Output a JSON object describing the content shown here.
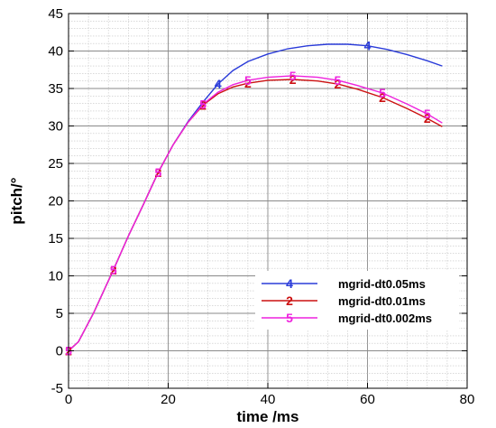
{
  "chart_data": {
    "type": "line",
    "xlabel": "time /ms",
    "ylabel": "pitch/°",
    "xlim": [
      0,
      80
    ],
    "ylim": [
      -5,
      45
    ],
    "xticks": [
      0,
      20,
      40,
      60,
      80
    ],
    "yticks": [
      -5,
      0,
      5,
      10,
      15,
      20,
      25,
      30,
      35,
      40,
      45
    ],
    "grid": true,
    "legend_position": "bottom-right",
    "series": [
      {
        "name": "mgrid-dt0.05ms",
        "marker": "4",
        "color": "#2a3bd9",
        "x": [
          0,
          2,
          5,
          9,
          12,
          15,
          18,
          21,
          24,
          27,
          30,
          33,
          36,
          40,
          44,
          48,
          52,
          56,
          60,
          64,
          68,
          72,
          75
        ],
        "y": [
          0,
          1.2,
          5,
          10.8,
          15.3,
          19.5,
          23.8,
          27.5,
          30.6,
          33.2,
          35.6,
          37.4,
          38.6,
          39.6,
          40.3,
          40.7,
          40.9,
          40.9,
          40.7,
          40.2,
          39.5,
          38.7,
          38
        ],
        "marker_x": [
          30,
          60
        ]
      },
      {
        "name": "mgrid-dt0.01ms",
        "marker": "2",
        "color": "#cc1111",
        "x": [
          0,
          2,
          5,
          9,
          12,
          15,
          18,
          21,
          24,
          27,
          30,
          33,
          36,
          40,
          45,
          50,
          54,
          58,
          63,
          68,
          72,
          75
        ],
        "y": [
          0,
          1.2,
          5,
          10.8,
          15.3,
          19.5,
          23.8,
          27.5,
          30.5,
          32.8,
          34.3,
          35.2,
          35.7,
          36.1,
          36.2,
          36,
          35.6,
          34.9,
          33.8,
          32.3,
          31,
          29.9
        ],
        "marker_x": [
          0,
          9,
          18,
          27,
          36,
          45,
          54,
          63,
          72
        ]
      },
      {
        "name": "mgrid-dt0.002ms",
        "marker": "5",
        "color": "#ee22dd",
        "x": [
          0,
          2,
          5,
          9,
          12,
          15,
          18,
          21,
          24,
          27,
          30,
          33,
          36,
          40,
          45,
          50,
          54,
          58,
          63,
          68,
          72,
          75
        ],
        "y": [
          0,
          1.2,
          5,
          10.8,
          15.3,
          19.5,
          23.8,
          27.5,
          30.5,
          32.9,
          34.5,
          35.5,
          36.1,
          36.5,
          36.7,
          36.5,
          36.1,
          35.4,
          34.4,
          32.9,
          31.6,
          30.4
        ],
        "marker_x": [
          0,
          9,
          18,
          27,
          36,
          45,
          54,
          63,
          72
        ]
      }
    ]
  }
}
